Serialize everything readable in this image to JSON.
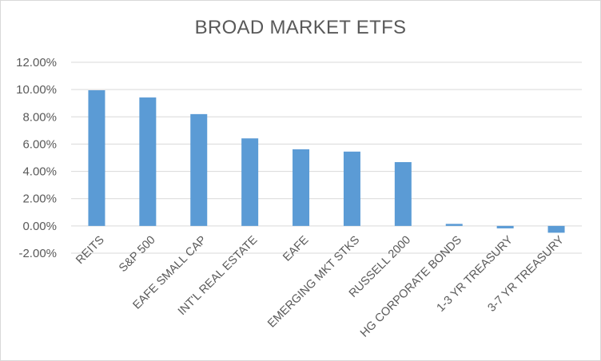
{
  "chart_data": {
    "type": "bar",
    "title": "BROAD MARKET ETFS",
    "xlabel": "",
    "ylabel": "",
    "categories": [
      "REITS",
      "S&P 500",
      "EAFE SMALL CAP",
      "INT'L REAL ESTATE",
      "EAFE",
      "EMERGING MKT STKS",
      "RUSSELL 2000",
      "HG CORPORATE BONDS",
      "1-3 YR TREASURY",
      "3-7 YR TREASURY"
    ],
    "values": [
      9.95,
      9.42,
      8.2,
      6.42,
      5.62,
      5.45,
      4.68,
      0.15,
      -0.18,
      -0.5
    ],
    "ylim": [
      -2,
      12
    ],
    "yticks": [
      -2,
      0,
      2,
      4,
      6,
      8,
      10,
      12
    ],
    "ytick_labels": [
      "-2.00%",
      "0.00%",
      "2.00%",
      "4.00%",
      "6.00%",
      "8.00%",
      "10.00%",
      "12.00%"
    ],
    "grid": true,
    "legend": "none",
    "colors": {
      "bar": "#5b9bd5",
      "grid": "#d9d9d9",
      "text": "#595959"
    }
  }
}
